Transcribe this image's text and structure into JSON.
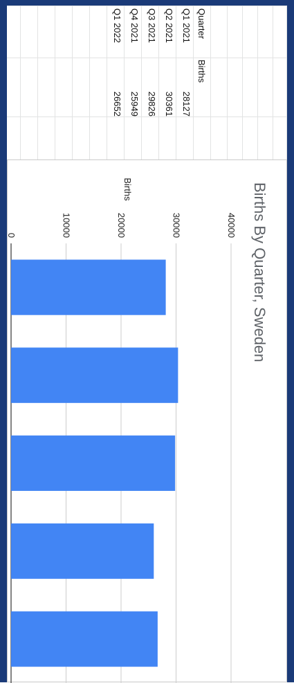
{
  "table": {
    "headers": [
      "Quarter",
      "Births"
    ],
    "rows": [
      [
        "Q1 2021",
        "28127"
      ],
      [
        "Q2 2021",
        "30361"
      ],
      [
        "Q3 2021",
        "29826"
      ],
      [
        "Q4 2021",
        "25949"
      ],
      [
        "Q1 2022",
        "26652"
      ]
    ]
  },
  "chart_data": {
    "type": "bar",
    "title": "Births By Quarter, Sweden",
    "ylabel": "Births",
    "xlabel": "",
    "categories": [
      "Q1 2021",
      "Q2 2021",
      "Q3 2021",
      "Q4 2021",
      "Q1 2022"
    ],
    "series": [
      {
        "values": [
          28127,
          30361,
          29826,
          25949,
          26652
        ]
      }
    ],
    "ylim": [
      0,
      40000
    ],
    "yticks": [
      "0",
      "10000",
      "20000",
      "30000",
      "40000"
    ],
    "grid": true,
    "legend": "none",
    "bar_color": "#4285f4"
  },
  "colors": {
    "frame": "#1a3a78",
    "grid": "#e2e3e3",
    "bar": "#4285f4"
  }
}
